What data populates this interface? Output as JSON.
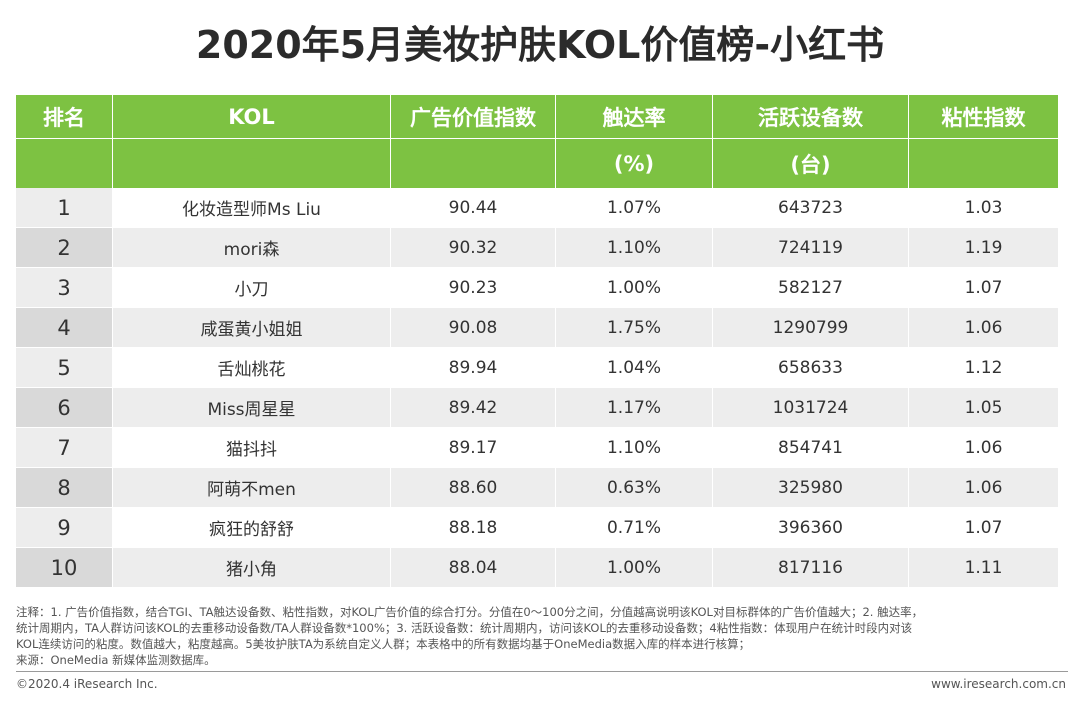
{
  "title": "2020年5月美妆护肤KOL价值榜-小红书",
  "table": {
    "headers": [
      "排名",
      "KOL",
      "广告价值指数",
      "触达率",
      "活跃设备数",
      "粘性指数"
    ],
    "sub_headers": [
      "",
      "",
      "",
      "(%)",
      "(台)",
      ""
    ],
    "rows": [
      {
        "rank": "1",
        "kol": "化妆造型师Ms Liu",
        "ad_value": "90.44",
        "reach": "1.07%",
        "devices": "643723",
        "stickiness": "1.03"
      },
      {
        "rank": "2",
        "kol": "mori森",
        "ad_value": "90.32",
        "reach": "1.10%",
        "devices": "724119",
        "stickiness": "1.19"
      },
      {
        "rank": "3",
        "kol": "小刀",
        "ad_value": "90.23",
        "reach": "1.00%",
        "devices": "582127",
        "stickiness": "1.07"
      },
      {
        "rank": "4",
        "kol": "咸蛋黄小姐姐",
        "ad_value": "90.08",
        "reach": "1.75%",
        "devices": "1290799",
        "stickiness": "1.06"
      },
      {
        "rank": "5",
        "kol": "舌灿桃花",
        "ad_value": "89.94",
        "reach": "1.04%",
        "devices": "658633",
        "stickiness": "1.12"
      },
      {
        "rank": "6",
        "kol": "Miss周星星",
        "ad_value": "89.42",
        "reach": "1.17%",
        "devices": "1031724",
        "stickiness": "1.05"
      },
      {
        "rank": "7",
        "kol": "猫抖抖",
        "ad_value": "89.17",
        "reach": "1.10%",
        "devices": "854741",
        "stickiness": "1.06"
      },
      {
        "rank": "8",
        "kol": "阿萌不men",
        "ad_value": "88.60",
        "reach": "0.63%",
        "devices": "325980",
        "stickiness": "1.06"
      },
      {
        "rank": "9",
        "kol": "疯狂的舒舒",
        "ad_value": "88.18",
        "reach": "0.71%",
        "devices": "396360",
        "stickiness": "1.07"
      },
      {
        "rank": "10",
        "kol": "猪小角",
        "ad_value": "88.04",
        "reach": "1.00%",
        "devices": "817116",
        "stickiness": "1.11"
      }
    ]
  },
  "notes": {
    "line1": "注释：1. 广告价值指数，结合TGI、TA触达设备数、粘性指数，对KOL广告价值的综合打分。分值在0～100分之间，分值越高说明该KOL对目标群体的广告价值越大；2. 触达率，",
    "line2": "统计周期内，TA人群访问该KOL的去重移动设备数/TA人群设备数*100%；3. 活跃设备数：统计周期内，访问该KOL的去重移动设备数；4粘性指数：体现用户在统计时段内对该",
    "line3": "KOL连续访问的粘度。数值越大，粘度越高。5美妆护肤TA为系统自定义人群；本表格中的所有数据均基于OneMedia数据入库的样本进行核算；",
    "line4": "来源：OneMedia 新媒体监测数据库。"
  },
  "footer": {
    "copyright": "©2020.4 iResearch Inc.",
    "website": "www.iresearch.com.cn"
  },
  "colors": {
    "header_green": "#7dc242",
    "row_gray": "#ededed",
    "rank_gray": "#d9d9d9"
  }
}
